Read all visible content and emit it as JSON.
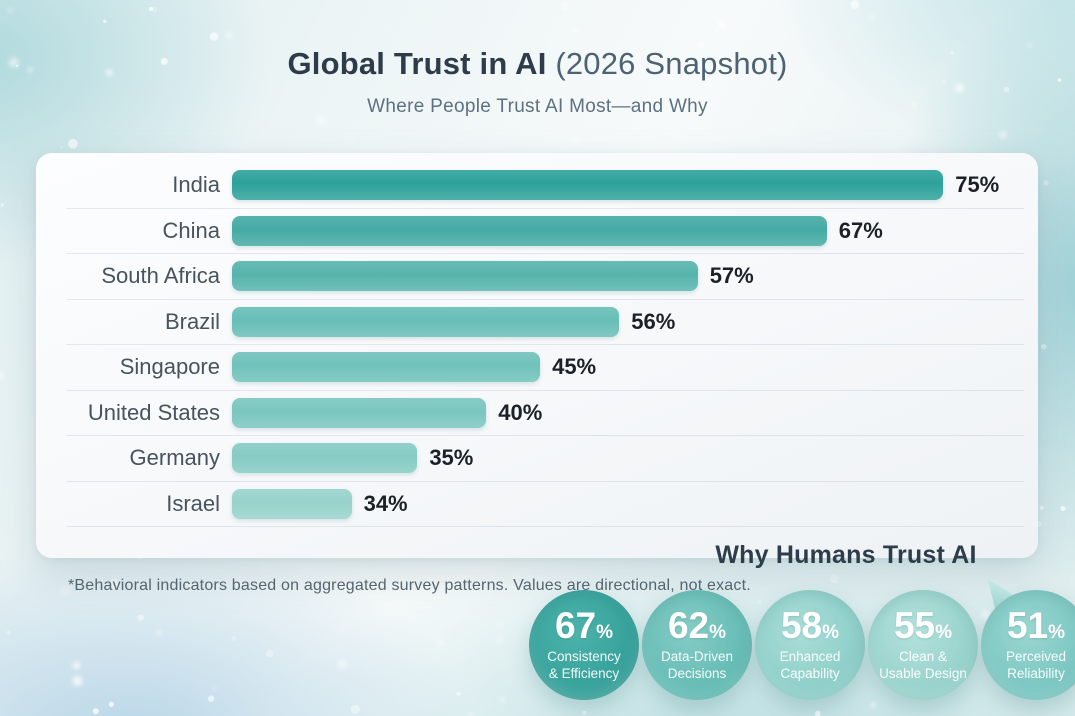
{
  "header": {
    "title": "Global Trust in AI",
    "title_suffix": " (2026 Snapshot)",
    "subtitle": "Where People Trust AI Most—and Why"
  },
  "chart_data": {
    "type": "bar",
    "orientation": "horizontal",
    "title": "Global Trust in AI (2026 Snapshot)",
    "xlabel": "",
    "ylabel": "",
    "value_unit": "%",
    "xlim": [
      0,
      100
    ],
    "grid": false,
    "categories": [
      "India",
      "China",
      "South Africa",
      "Brazil",
      "Singapore",
      "United States",
      "Germany",
      "Israel"
    ],
    "values": [
      75,
      67,
      57,
      56,
      45,
      40,
      35,
      34
    ],
    "rows": [
      {
        "label": "India",
        "value": 75,
        "value_label": "75%",
        "color": "#2da29b",
        "bar_fraction": 1.0
      },
      {
        "label": "China",
        "value": 67,
        "value_label": "67%",
        "color": "#45aba4",
        "bar_fraction": 0.836
      },
      {
        "label": "South Africa",
        "value": 57,
        "value_label": "57%",
        "color": "#57b4ad",
        "bar_fraction": 0.655
      },
      {
        "label": "Brazil",
        "value": 56,
        "value_label": "56%",
        "color": "#68beb7",
        "bar_fraction": 0.544
      },
      {
        "label": "Singapore",
        "value": 45,
        "value_label": "45%",
        "color": "#70c2bb",
        "bar_fraction": 0.433
      },
      {
        "label": "United States",
        "value": 40,
        "value_label": "40%",
        "color": "#7ac6bf",
        "bar_fraction": 0.358
      },
      {
        "label": "Germany",
        "value": 35,
        "value_label": "35%",
        "color": "#86cbc4",
        "bar_fraction": 0.261
      },
      {
        "label": "Israel",
        "value": 34,
        "value_label": "34%",
        "color": "#97d3cc",
        "bar_fraction": 0.168
      }
    ]
  },
  "why_section": {
    "title": "Why Humans Trust AI",
    "badges": [
      {
        "value": "67",
        "unit": "%",
        "line1": "Consistency",
        "line2": "& Efficiency",
        "color": "#35a19a",
        "color_light": "#4db3ac",
        "color_dark": "#2b928b"
      },
      {
        "value": "62",
        "unit": "%",
        "line1": "Data-Driven",
        "line2": "Decisions",
        "color": "#64bcb5",
        "color_light": "#86ccc6",
        "color_dark": "#55aea7"
      },
      {
        "value": "58",
        "unit": "%",
        "line1": "Enhanced",
        "line2": "Capability",
        "color": "#8ecfc9",
        "color_light": "#aaddd8",
        "color_dark": "#7cc2bb"
      },
      {
        "value": "55",
        "unit": "%",
        "line1": "Clean &",
        "line2": "Usable Design",
        "color": "#97d2cc",
        "color_light": "#b4e1dc",
        "color_dark": "#86c6c0"
      },
      {
        "value": "51",
        "unit": "%",
        "line1": "Perceived",
        "line2": "Reliability",
        "color": "#7ac6c1",
        "color_light": "#9bd6d1",
        "color_dark": "#68b8b3"
      }
    ]
  },
  "footnote": "*Behavioral indicators based on aggregated survey patterns. Values are directional, not exact."
}
